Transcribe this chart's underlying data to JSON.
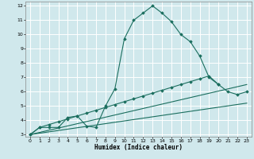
{
  "background_color": "#d0e8ec",
  "grid_color": "#ffffff",
  "line_color": "#1a6e5e",
  "xlabel": "Humidex (Indice chaleur)",
  "xlim": [
    -0.5,
    23.5
  ],
  "ylim": [
    2.85,
    12.3
  ],
  "xticks": [
    0,
    1,
    2,
    3,
    4,
    5,
    6,
    7,
    8,
    9,
    10,
    11,
    12,
    13,
    14,
    15,
    16,
    17,
    18,
    19,
    20,
    21,
    22,
    23
  ],
  "yticks": [
    3,
    4,
    5,
    6,
    7,
    8,
    9,
    10,
    11,
    12
  ],
  "curve1_x": [
    0,
    1,
    2,
    3,
    4,
    5,
    6,
    7,
    8,
    9,
    10,
    11,
    12,
    13,
    14,
    15,
    16,
    17,
    18,
    19,
    20
  ],
  "curve1_y": [
    3.0,
    3.5,
    3.5,
    3.5,
    4.2,
    4.3,
    3.6,
    3.5,
    5.0,
    6.2,
    9.7,
    11.0,
    11.5,
    12.0,
    11.5,
    10.9,
    10.0,
    9.5,
    8.5,
    7.0,
    6.5
  ],
  "curve2_x": [
    0,
    1,
    2,
    3,
    4,
    5,
    6,
    7,
    8,
    9,
    10,
    11,
    12,
    13,
    14,
    15,
    16,
    17,
    18,
    19,
    20,
    21,
    22,
    23
  ],
  "curve2_y": [
    3.0,
    3.5,
    3.7,
    3.9,
    4.1,
    4.3,
    4.5,
    4.7,
    4.9,
    5.1,
    5.3,
    5.5,
    5.7,
    5.9,
    6.1,
    6.3,
    6.5,
    6.7,
    6.9,
    7.1,
    6.5,
    6.0,
    5.8,
    6.0
  ],
  "line3_x": [
    0,
    23
  ],
  "line3_y": [
    3.0,
    6.5
  ],
  "line4_x": [
    0,
    23
  ],
  "line4_y": [
    3.0,
    5.2
  ]
}
